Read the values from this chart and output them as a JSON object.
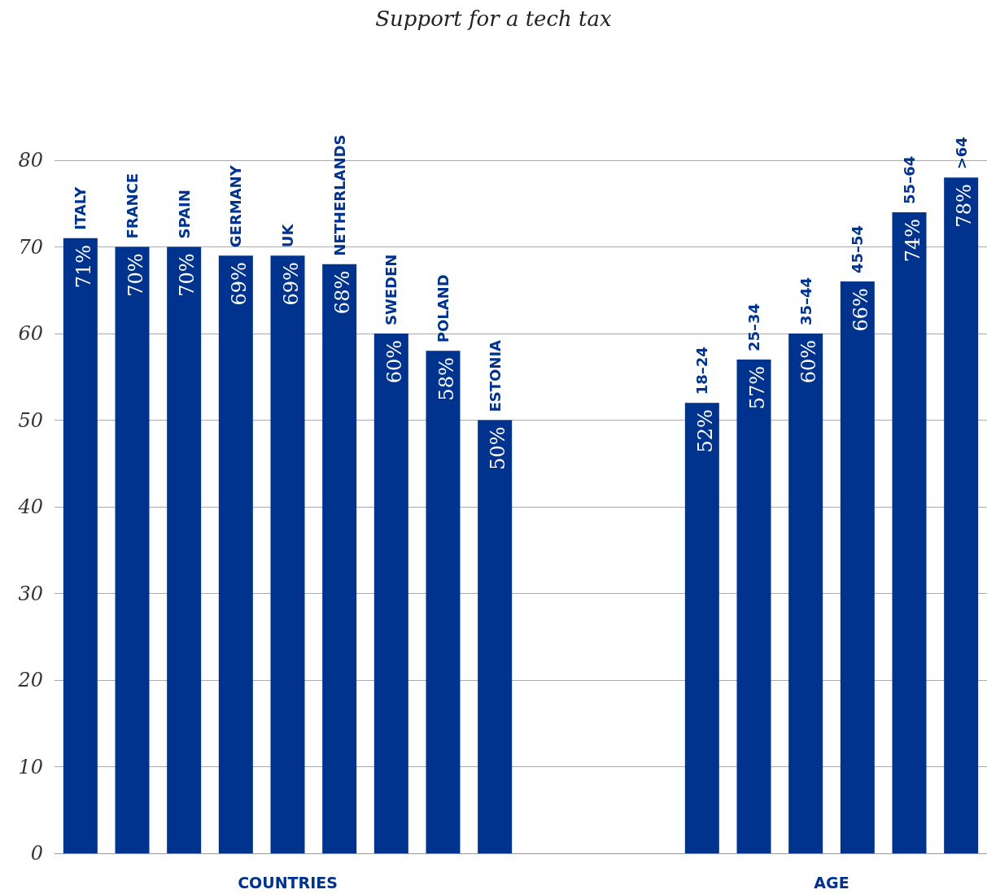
{
  "chart_data": {
    "type": "bar",
    "title": "Support for a tech tax",
    "categories": [
      "ITALY",
      "FRANCE",
      "SPAIN",
      "GERMANY",
      "UK",
      "NETHERLANDS",
      "SWEDEN",
      "POLAND",
      "ESTONIA",
      null,
      null,
      null,
      "18–24",
      "25–34",
      "35–44",
      "45–54",
      "55–64",
      ">64"
    ],
    "values": [
      71,
      70,
      70,
      69,
      69,
      68,
      60,
      58,
      50,
      null,
      null,
      null,
      52,
      57,
      60,
      66,
      74,
      78
    ],
    "value_labels": [
      "71%",
      "70%",
      "70%",
      "69%",
      "69%",
      "68%",
      "60%",
      "58%",
      "50%",
      null,
      null,
      null,
      "52%",
      "57%",
      "60%",
      "66%",
      "74%",
      "78%"
    ],
    "color": "#00338d",
    "ylim": [
      0,
      80
    ],
    "yticks": [
      0,
      10,
      20,
      30,
      40,
      50,
      60,
      70,
      80
    ],
    "grid": "y",
    "annotations": [
      "COUNTRIES",
      "AGE"
    ]
  }
}
